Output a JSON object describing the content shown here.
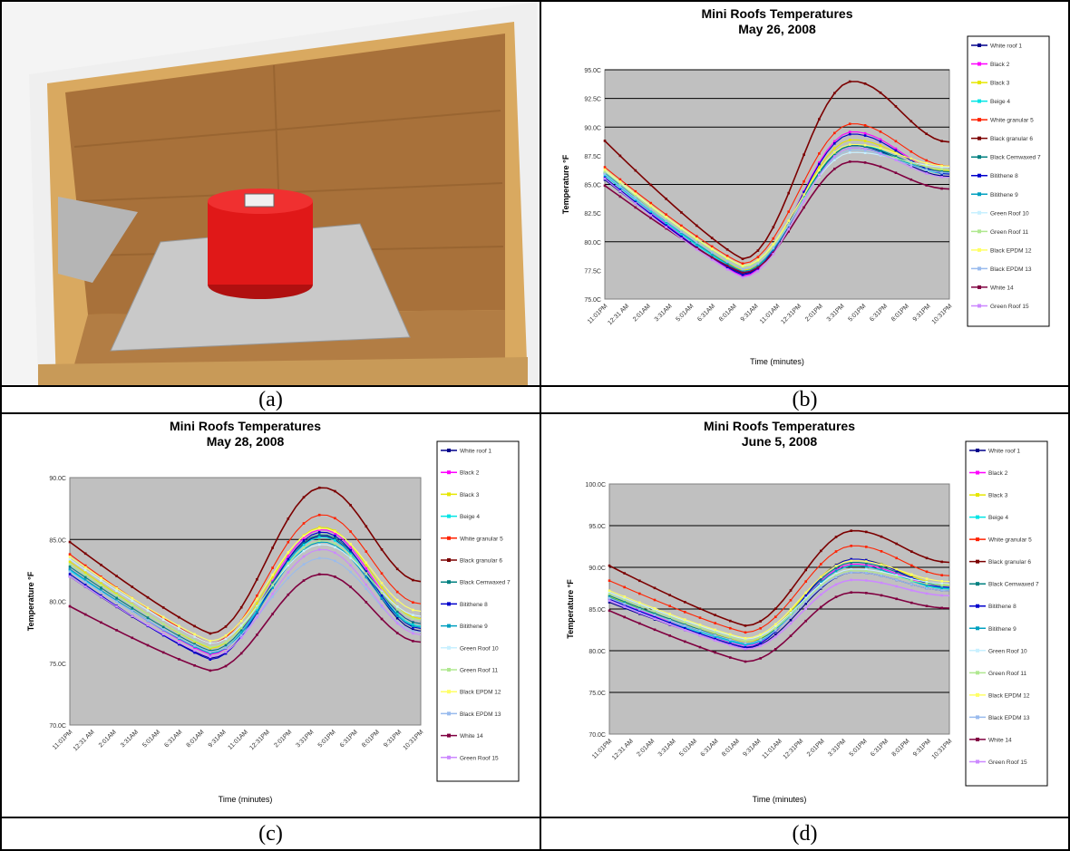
{
  "captions": [
    "(a)",
    "(b)",
    "(c)",
    "(d)"
  ],
  "legend_series": [
    "White roof 1",
    "Black 2",
    "Black 3",
    "Beige 4",
    "White granular 5",
    "Black granular 6",
    "Black Cemwaxed 7",
    "Bitithene 8",
    "Bitithene 9",
    "Green Roof 10",
    "Green Roof 11",
    "Black EPDM 12",
    "Black EPDM 13",
    "White 14",
    "Green Roof 15"
  ],
  "series_colors": [
    "#00008b",
    "#ff00ff",
    "#e6e600",
    "#00e5e5",
    "#ff2200",
    "#7b0000",
    "#008080",
    "#0000cc",
    "#00a0c0",
    "#c8f0ff",
    "#b0e890",
    "#ffff66",
    "#99bbee",
    "#800040",
    "#cc88ff"
  ],
  "x_tick_labels": [
    "11:01PM",
    "12:31 AM",
    "2:01AM",
    "3:31AM",
    "5:01AM",
    "6:31AM",
    "8:01AM",
    "9:31AM",
    "11:01AM",
    "12:31PM",
    "2:01PM",
    "3:31PM",
    "5:01PM",
    "6:31PM",
    "8:01PM",
    "9:31PM",
    "10:31PM"
  ],
  "chart_data": [
    {
      "type": "line",
      "title": "Mini Roofs Temperatures",
      "subtitle": "May 26, 2008",
      "xlabel": "Time (minutes)",
      "ylabel": "Temperature °F",
      "ylim": [
        75,
        95
      ],
      "y_ticks": [
        75,
        77.5,
        80,
        82.5,
        85,
        87.5,
        90,
        92.5,
        95
      ],
      "y_tick_labels": [
        "75.0C",
        "77.5C",
        "80.0C",
        "82.5C",
        "85.0C",
        "87.5C",
        "90.0C",
        "92.5C",
        "95.0C"
      ],
      "gridlines": [
        80,
        85,
        90,
        92.5,
        95
      ],
      "legend_position": "right",
      "series_peaks": [
        {
          "name": "White roof 1",
          "start": 85.4,
          "min": 77.2,
          "max": 88.4,
          "end": 85.7
        },
        {
          "name": "Black 2",
          "start": 85.9,
          "min": 77.0,
          "max": 89.6,
          "end": 86.0
        },
        {
          "name": "Black 3",
          "start": 86.0,
          "min": 77.5,
          "max": 88.9,
          "end": 86.2
        },
        {
          "name": "Beige 4",
          "start": 85.8,
          "min": 77.3,
          "max": 88.5,
          "end": 85.9
        },
        {
          "name": "White granular 5",
          "start": 86.5,
          "min": 78.1,
          "max": 90.3,
          "end": 86.6
        },
        {
          "name": "Black granular 6",
          "start": 88.8,
          "min": 78.5,
          "max": 94.0,
          "end": 88.7
        },
        {
          "name": "Black Cemwaxed 7",
          "start": 86.0,
          "min": 77.4,
          "max": 88.4,
          "end": 86.1
        },
        {
          "name": "Bitithene 8",
          "start": 85.6,
          "min": 77.1,
          "max": 89.4,
          "end": 85.9
        },
        {
          "name": "Bitithene 9",
          "start": 86.0,
          "min": 77.4,
          "max": 88.2,
          "end": 86.0
        },
        {
          "name": "Green Roof 10",
          "start": 86.2,
          "min": 77.9,
          "max": 87.8,
          "end": 86.5
        },
        {
          "name": "Green Roof 11",
          "start": 86.1,
          "min": 77.8,
          "max": 88.0,
          "end": 86.3
        },
        {
          "name": "Black EPDM 12",
          "start": 86.3,
          "min": 77.9,
          "max": 88.5,
          "end": 86.6
        },
        {
          "name": "Black EPDM 13",
          "start": 85.9,
          "min": 77.6,
          "max": 88.0,
          "end": 86.0
        },
        {
          "name": "White 14",
          "start": 84.9,
          "min": 77.3,
          "max": 87.0,
          "end": 84.6
        },
        {
          "name": "Green Roof 15",
          "start": 85.5,
          "min": 76.9,
          "max": 88.2,
          "end": 85.6
        }
      ]
    },
    {
      "type": "line",
      "title": "Mini Roofs Temperatures",
      "subtitle": "May 28, 2008",
      "xlabel": "Time (minutes)",
      "ylabel": "Temperature °F",
      "ylim": [
        70,
        90
      ],
      "y_ticks": [
        70,
        75,
        80,
        85,
        90
      ],
      "y_tick_labels": [
        "70.0C",
        "75.0C",
        "80.0C",
        "85.0C",
        "90.0C"
      ],
      "gridlines": [
        85
      ],
      "legend_position": "right",
      "series_peaks": [
        {
          "name": "White roof 1",
          "start": 82.0,
          "min": 75.4,
          "max": 85.3,
          "end": 77.6
        },
        {
          "name": "Black 2",
          "start": 82.6,
          "min": 75.7,
          "max": 85.8,
          "end": 78.2
        },
        {
          "name": "Black 3",
          "start": 83.2,
          "min": 76.2,
          "max": 86.0,
          "end": 78.6
        },
        {
          "name": "Beige 4",
          "start": 82.5,
          "min": 75.8,
          "max": 85.2,
          "end": 78.0
        },
        {
          "name": "White granular 5",
          "start": 83.8,
          "min": 76.6,
          "max": 87.0,
          "end": 79.8
        },
        {
          "name": "Black granular 6",
          "start": 84.8,
          "min": 77.4,
          "max": 89.2,
          "end": 81.6
        },
        {
          "name": "Black Cemwaxed 7",
          "start": 82.8,
          "min": 76.0,
          "max": 85.4,
          "end": 78.2
        },
        {
          "name": "Bitithene 8",
          "start": 82.2,
          "min": 75.3,
          "max": 85.6,
          "end": 77.8
        },
        {
          "name": "Bitithene 9",
          "start": 82.6,
          "min": 75.8,
          "max": 84.8,
          "end": 77.9
        },
        {
          "name": "Green Roof 10",
          "start": 83.4,
          "min": 76.6,
          "max": 84.6,
          "end": 78.8
        },
        {
          "name": "Green Roof 11",
          "start": 83.0,
          "min": 76.3,
          "max": 84.9,
          "end": 78.5
        },
        {
          "name": "Black EPDM 12",
          "start": 83.6,
          "min": 76.8,
          "max": 85.9,
          "end": 79.2
        },
        {
          "name": "Black EPDM 13",
          "start": 82.4,
          "min": 75.9,
          "max": 83.5,
          "end": 77.5
        },
        {
          "name": "White 14",
          "start": 79.6,
          "min": 74.4,
          "max": 82.2,
          "end": 76.7
        },
        {
          "name": "Green Roof 15",
          "start": 82.0,
          "min": 75.5,
          "max": 84.2,
          "end": 77.3
        }
      ]
    },
    {
      "type": "line",
      "title": "Mini Roofs Temperatures",
      "subtitle": "June 5, 2008",
      "xlabel": "Time (minutes)",
      "ylabel": "Temperature °F",
      "ylim": [
        70,
        100
      ],
      "y_ticks": [
        70,
        75,
        80,
        85,
        90,
        95,
        100
      ],
      "y_tick_labels": [
        "70.0C",
        "75.0C",
        "80.0C",
        "85.0C",
        "90.0C",
        "95.0C",
        "100.0C"
      ],
      "gridlines": [
        75,
        80,
        85,
        90,
        95
      ],
      "legend_position": "right",
      "series_peaks": [
        {
          "name": "White roof 1",
          "start": 85.8,
          "min": 80.3,
          "max": 89.4,
          "end": 87.2
        },
        {
          "name": "Black 2",
          "start": 86.2,
          "min": 80.6,
          "max": 90.4,
          "end": 87.6
        },
        {
          "name": "Black 3",
          "start": 86.5,
          "min": 81.0,
          "max": 91.0,
          "end": 87.9
        },
        {
          "name": "Beige 4",
          "start": 86.0,
          "min": 80.7,
          "max": 90.2,
          "end": 87.4
        },
        {
          "name": "White granular 5",
          "start": 88.4,
          "min": 82.2,
          "max": 92.6,
          "end": 89.0
        },
        {
          "name": "Black granular 6",
          "start": 90.2,
          "min": 83.0,
          "max": 94.4,
          "end": 90.6
        },
        {
          "name": "Black Cemwaxed 7",
          "start": 86.6,
          "min": 80.9,
          "max": 90.6,
          "end": 87.8
        },
        {
          "name": "Bitithene 8",
          "start": 86.2,
          "min": 80.4,
          "max": 91.0,
          "end": 87.6
        },
        {
          "name": "Bitithene 9",
          "start": 86.4,
          "min": 80.8,
          "max": 90.2,
          "end": 87.5
        },
        {
          "name": "Green Roof 10",
          "start": 87.0,
          "min": 81.4,
          "max": 89.8,
          "end": 88.0
        },
        {
          "name": "Green Roof 11",
          "start": 86.8,
          "min": 81.2,
          "max": 89.6,
          "end": 87.8
        },
        {
          "name": "Black EPDM 12",
          "start": 87.2,
          "min": 81.5,
          "max": 90.8,
          "end": 88.3
        },
        {
          "name": "Black EPDM 13",
          "start": 86.3,
          "min": 80.9,
          "max": 89.4,
          "end": 87.2
        },
        {
          "name": "White 14",
          "start": 84.8,
          "min": 78.7,
          "max": 87.0,
          "end": 85.1
        },
        {
          "name": "Green Roof 15",
          "start": 86.0,
          "min": 80.2,
          "max": 88.5,
          "end": 86.6
        }
      ]
    }
  ]
}
